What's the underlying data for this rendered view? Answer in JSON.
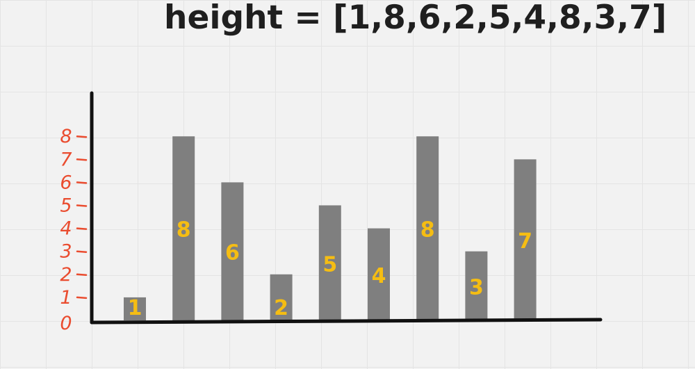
{
  "title": "height = [1,8,6,2,5,4,8,3,7]",
  "colors": {
    "bar": "#7f7f7f",
    "bar_label": "#f5bd13",
    "axis": "#111111",
    "tick": "#ea4c2f",
    "background": "#f2f2f2"
  },
  "chart_data": {
    "type": "bar",
    "values": [
      1,
      8,
      6,
      2,
      5,
      4,
      8,
      3,
      7
    ],
    "data_labels": [
      "1",
      "8",
      "6",
      "2",
      "5",
      "4",
      "8",
      "3",
      "7"
    ],
    "y_ticks": [
      "0",
      "1",
      "2",
      "3",
      "4",
      "5",
      "6",
      "7",
      "8"
    ],
    "ylim": [
      0,
      8
    ],
    "grid": true
  }
}
